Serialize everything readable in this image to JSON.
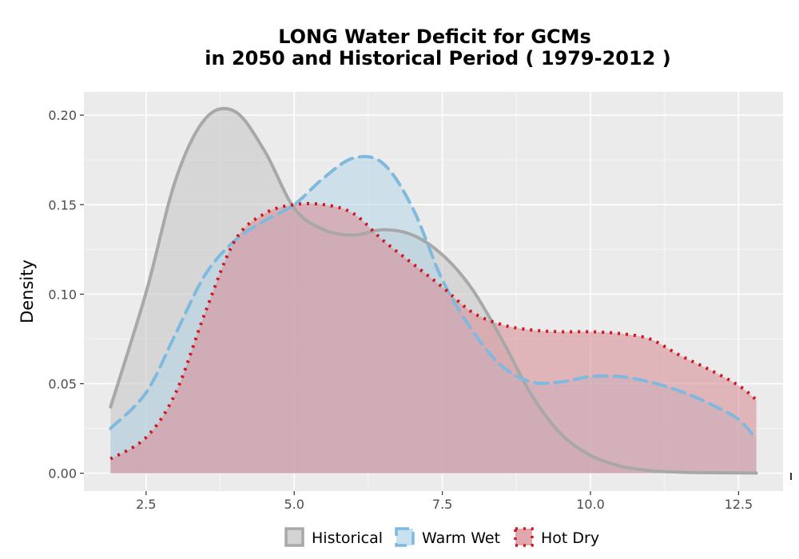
{
  "chart_data": {
    "type": "area",
    "title_line1": "LONG  Water Deficit for GCMs",
    "title_line2": "in 2050 and Historical Period ( 1979-2012 )",
    "xlabel": "",
    "ylabel": "Density",
    "xlim": [
      1.45,
      13.25
    ],
    "ylim": [
      -0.01,
      0.213
    ],
    "x_ticks": [
      2.5,
      5.0,
      7.5,
      10.0,
      12.5
    ],
    "x_tick_labels": [
      "2.5",
      "5.0",
      "7.5",
      "10.0",
      "12.5"
    ],
    "y_ticks": [
      0.0,
      0.05,
      0.1,
      0.15,
      0.2
    ],
    "y_tick_labels": [
      "0.00",
      "0.05",
      "0.10",
      "0.15",
      "0.20"
    ],
    "grid": true,
    "legend_position": "bottom",
    "x": [
      1.9,
      2.5,
      3.0,
      3.5,
      4.0,
      4.5,
      5.0,
      5.5,
      6.0,
      6.5,
      7.0,
      7.5,
      8.0,
      8.5,
      9.0,
      9.5,
      10.0,
      10.5,
      11.0,
      11.5,
      12.0,
      12.5,
      12.8
    ],
    "series": [
      {
        "name": "Historical",
        "fill": "#c8c8c8",
        "stroke": "#a8a8a8",
        "dash": "none",
        "fill_opacity": 0.6,
        "values": [
          0.037,
          0.101,
          0.164,
          0.198,
          0.202,
          0.18,
          0.148,
          0.136,
          0.133,
          0.136,
          0.133,
          0.122,
          0.103,
          0.075,
          0.044,
          0.022,
          0.01,
          0.004,
          0.0015,
          0.0006,
          0.0003,
          0.0002,
          0.0001
        ]
      },
      {
        "name": "Warm Wet",
        "fill": "#b4d7ea",
        "stroke": "#7fb9dd",
        "dash": "16,9",
        "fill_opacity": 0.55,
        "values": [
          0.025,
          0.045,
          0.078,
          0.111,
          0.13,
          0.141,
          0.15,
          0.165,
          0.176,
          0.173,
          0.148,
          0.108,
          0.08,
          0.06,
          0.051,
          0.051,
          0.054,
          0.054,
          0.051,
          0.046,
          0.039,
          0.03,
          0.019
        ]
      },
      {
        "name": "Hot Dry",
        "fill": "#d9919a",
        "stroke": "#d2151f",
        "dash": "3,7",
        "fill_opacity": 0.6,
        "values": [
          0.008,
          0.02,
          0.045,
          0.09,
          0.13,
          0.145,
          0.15,
          0.15,
          0.145,
          0.13,
          0.117,
          0.104,
          0.09,
          0.083,
          0.08,
          0.079,
          0.079,
          0.078,
          0.075,
          0.066,
          0.058,
          0.049,
          0.041
        ]
      }
    ]
  }
}
